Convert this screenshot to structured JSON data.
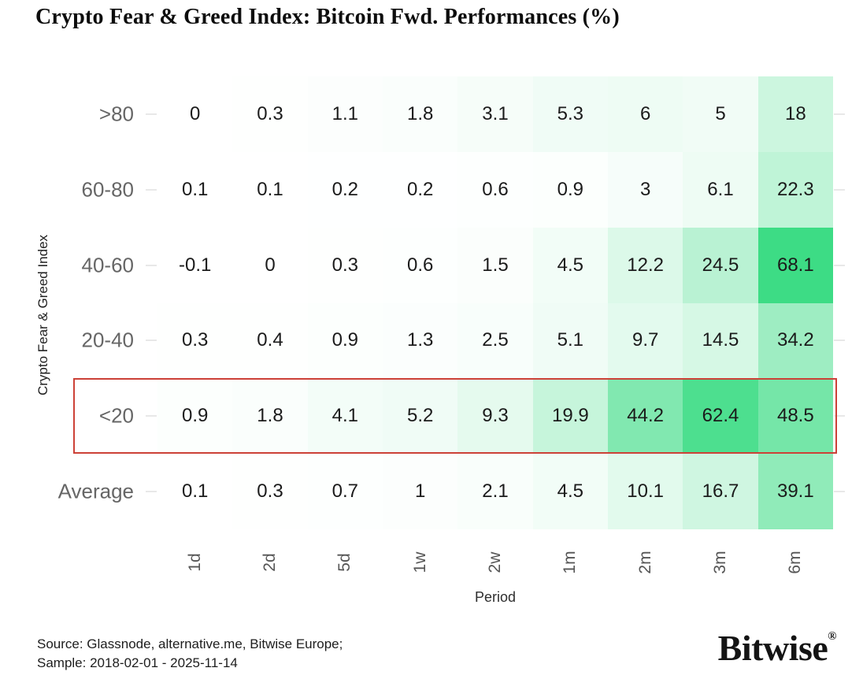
{
  "chart_data": {
    "type": "heatmap",
    "title": "Crypto Fear & Greed Index: Bitcoin Fwd. Performances (%)",
    "xlabel": "Period",
    "ylabel": "Crypto Fear & Greed Index",
    "columns": [
      "1d",
      "2d",
      "5d",
      "1w",
      "2w",
      "1m",
      "2m",
      "3m",
      "6m"
    ],
    "rows": [
      ">80",
      "60-80",
      "40-60",
      "20-40",
      "<20",
      "Average"
    ],
    "values": [
      [
        "0",
        "0.3",
        "1.1",
        "1.8",
        "3.1",
        "5.3",
        "6",
        "5",
        "18"
      ],
      [
        "0.1",
        "0.1",
        "0.2",
        "0.2",
        "0.6",
        "0.9",
        "3",
        "6.1",
        "22.3"
      ],
      [
        "-0.1",
        "0",
        "0.3",
        "0.6",
        "1.5",
        "4.5",
        "12.2",
        "24.5",
        "68.1"
      ],
      [
        "0.3",
        "0.4",
        "0.9",
        "1.3",
        "2.5",
        "5.1",
        "9.7",
        "14.5",
        "34.2"
      ],
      [
        "0.9",
        "1.8",
        "4.1",
        "5.2",
        "9.3",
        "19.9",
        "44.2",
        "62.4",
        "48.5"
      ],
      [
        "0.1",
        "0.3",
        "0.7",
        "1",
        "2.1",
        "4.5",
        "10.1",
        "16.7",
        "39.1"
      ]
    ],
    "highlighted_row": "<20",
    "highlight_color": "#cc4137",
    "color_scale": {
      "min_value": 0,
      "max_value": 68.1,
      "low_color": "#ffffff",
      "high_color": "#3ddc85"
    },
    "legend": "none",
    "grid": "off"
  },
  "footer": {
    "source_line": "Source: Glassnode, alternative.me, Bitwise Europe;",
    "sample_line": "Sample: 2018-02-01 - 2025-11-14"
  },
  "logo": {
    "text": "Bitwise",
    "registered_mark": "®"
  }
}
